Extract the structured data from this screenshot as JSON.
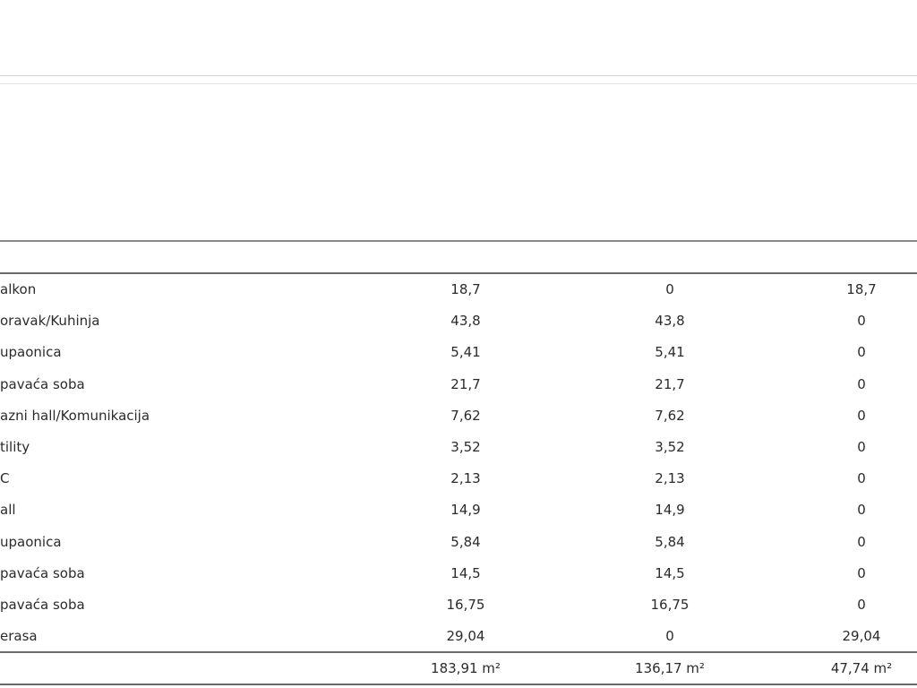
{
  "table": {
    "rows": [
      [
        "alkon",
        "18,7",
        "0",
        "18,7"
      ],
      [
        "oravak/Kuhinja",
        "43,8",
        "43,8",
        "0"
      ],
      [
        "upaonica",
        "5,41",
        "5,41",
        "0"
      ],
      [
        "pavaća soba",
        "21,7",
        "21,7",
        "0"
      ],
      [
        "azni hall/Komunikacija",
        "7,62",
        "7,62",
        "0"
      ],
      [
        "tility",
        "3,52",
        "3,52",
        "0"
      ],
      [
        "C",
        "2,13",
        "2,13",
        "0"
      ],
      [
        "all",
        "14,9",
        "14,9",
        "0"
      ],
      [
        "upaonica",
        "5,84",
        "5,84",
        "0"
      ],
      [
        "pavaća soba",
        "14,5",
        "14,5",
        "0"
      ],
      [
        "pavaća soba",
        "16,75",
        "16,75",
        "0"
      ],
      [
        "erasa",
        "29,04",
        "0",
        "29,04"
      ]
    ],
    "totals": [
      "183,91 m²",
      "136,17 m²",
      "47,74 m²"
    ]
  }
}
